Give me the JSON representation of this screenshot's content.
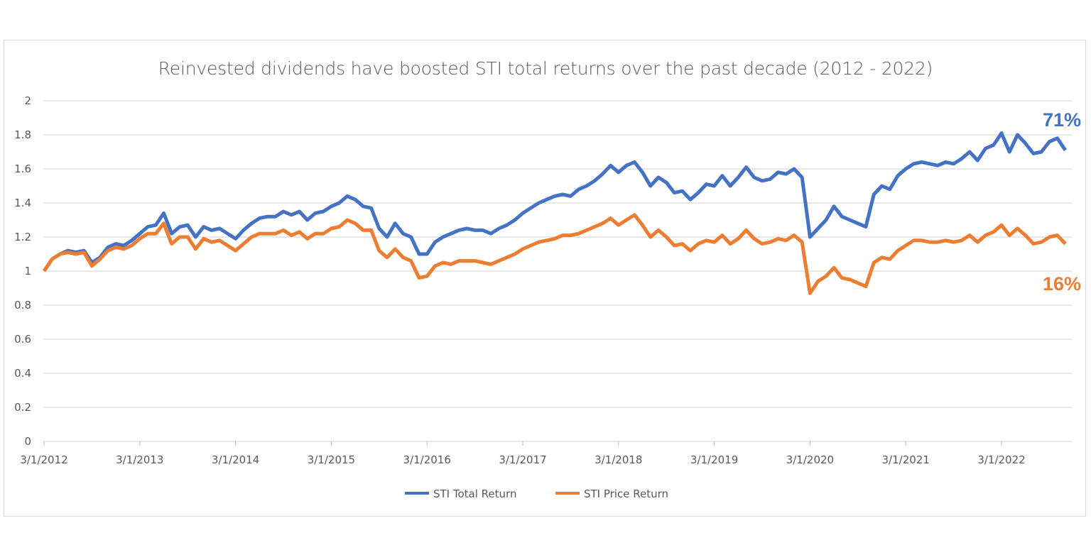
{
  "chart_data": {
    "type": "line",
    "title": "Reinvested dividends have boosted STI total returns over the past decade (2012 - 2022)",
    "xlabel": "",
    "ylabel": "",
    "ylim": [
      0,
      2
    ],
    "yticks": [
      "0",
      "0.2",
      "0.4",
      "0.6",
      "0.8",
      "1",
      "1.2",
      "1.4",
      "1.6",
      "1.8",
      "2"
    ],
    "xticks": [
      {
        "date": "2012-03",
        "label": "3/1/2012"
      },
      {
        "date": "2013-03",
        "label": "3/1/2013"
      },
      {
        "date": "2014-03",
        "label": "3/1/2014"
      },
      {
        "date": "2015-03",
        "label": "3/1/2015"
      },
      {
        "date": "2016-03",
        "label": "3/1/2016"
      },
      {
        "date": "2017-03",
        "label": "3/1/2017"
      },
      {
        "date": "2018-03",
        "label": "3/1/2018"
      },
      {
        "date": "2019-03",
        "label": "3/1/2019"
      },
      {
        "date": "2020-03",
        "label": "3/1/2020"
      },
      {
        "date": "2021-03",
        "label": "3/1/2021"
      },
      {
        "date": "2022-03",
        "label": "3/1/2022"
      }
    ],
    "grid": "horizontal",
    "legend_position": "bottom",
    "x_start": "2012-03",
    "x_frequency": "monthly",
    "series": [
      {
        "name": "STI Total Return",
        "color": "#4472C4",
        "end_label": "71%",
        "values": [
          1.0,
          1.07,
          1.1,
          1.12,
          1.11,
          1.12,
          1.05,
          1.08,
          1.14,
          1.16,
          1.15,
          1.18,
          1.22,
          1.26,
          1.27,
          1.34,
          1.22,
          1.26,
          1.27,
          1.2,
          1.26,
          1.24,
          1.25,
          1.22,
          1.19,
          1.24,
          1.28,
          1.31,
          1.32,
          1.32,
          1.35,
          1.33,
          1.35,
          1.3,
          1.34,
          1.35,
          1.38,
          1.4,
          1.44,
          1.42,
          1.38,
          1.37,
          1.25,
          1.2,
          1.28,
          1.22,
          1.2,
          1.1,
          1.1,
          1.17,
          1.2,
          1.22,
          1.24,
          1.25,
          1.24,
          1.24,
          1.22,
          1.25,
          1.27,
          1.3,
          1.34,
          1.37,
          1.4,
          1.42,
          1.44,
          1.45,
          1.44,
          1.48,
          1.5,
          1.53,
          1.57,
          1.62,
          1.58,
          1.62,
          1.64,
          1.58,
          1.5,
          1.55,
          1.52,
          1.46,
          1.47,
          1.42,
          1.46,
          1.51,
          1.5,
          1.56,
          1.5,
          1.55,
          1.61,
          1.55,
          1.53,
          1.54,
          1.58,
          1.57,
          1.6,
          1.55,
          1.2,
          1.25,
          1.3,
          1.38,
          1.32,
          1.3,
          1.28,
          1.26,
          1.45,
          1.5,
          1.48,
          1.56,
          1.6,
          1.63,
          1.64,
          1.63,
          1.62,
          1.64,
          1.63,
          1.66,
          1.7,
          1.65,
          1.72,
          1.74,
          1.81,
          1.7,
          1.8,
          1.75,
          1.69,
          1.7,
          1.76,
          1.78,
          1.71
        ]
      },
      {
        "name": "STI Price Return",
        "color": "#ED7D31",
        "end_label": "16%",
        "values": [
          1.0,
          1.07,
          1.1,
          1.11,
          1.1,
          1.11,
          1.03,
          1.07,
          1.12,
          1.14,
          1.13,
          1.15,
          1.19,
          1.22,
          1.22,
          1.28,
          1.16,
          1.2,
          1.2,
          1.13,
          1.19,
          1.17,
          1.18,
          1.15,
          1.12,
          1.16,
          1.2,
          1.22,
          1.22,
          1.22,
          1.24,
          1.21,
          1.23,
          1.19,
          1.22,
          1.22,
          1.25,
          1.26,
          1.3,
          1.28,
          1.24,
          1.24,
          1.12,
          1.08,
          1.13,
          1.08,
          1.06,
          0.96,
          0.97,
          1.03,
          1.05,
          1.04,
          1.06,
          1.06,
          1.06,
          1.05,
          1.04,
          1.06,
          1.08,
          1.1,
          1.13,
          1.15,
          1.17,
          1.18,
          1.19,
          1.21,
          1.21,
          1.22,
          1.24,
          1.26,
          1.28,
          1.31,
          1.27,
          1.3,
          1.33,
          1.27,
          1.2,
          1.24,
          1.2,
          1.15,
          1.16,
          1.12,
          1.16,
          1.18,
          1.17,
          1.21,
          1.16,
          1.19,
          1.24,
          1.19,
          1.16,
          1.17,
          1.19,
          1.18,
          1.21,
          1.17,
          0.87,
          0.94,
          0.97,
          1.02,
          0.96,
          0.95,
          0.93,
          0.91,
          1.05,
          1.08,
          1.07,
          1.12,
          1.15,
          1.18,
          1.18,
          1.17,
          1.17,
          1.18,
          1.17,
          1.18,
          1.21,
          1.17,
          1.21,
          1.23,
          1.27,
          1.21,
          1.25,
          1.21,
          1.16,
          1.17,
          1.2,
          1.21,
          1.16
        ]
      }
    ]
  }
}
